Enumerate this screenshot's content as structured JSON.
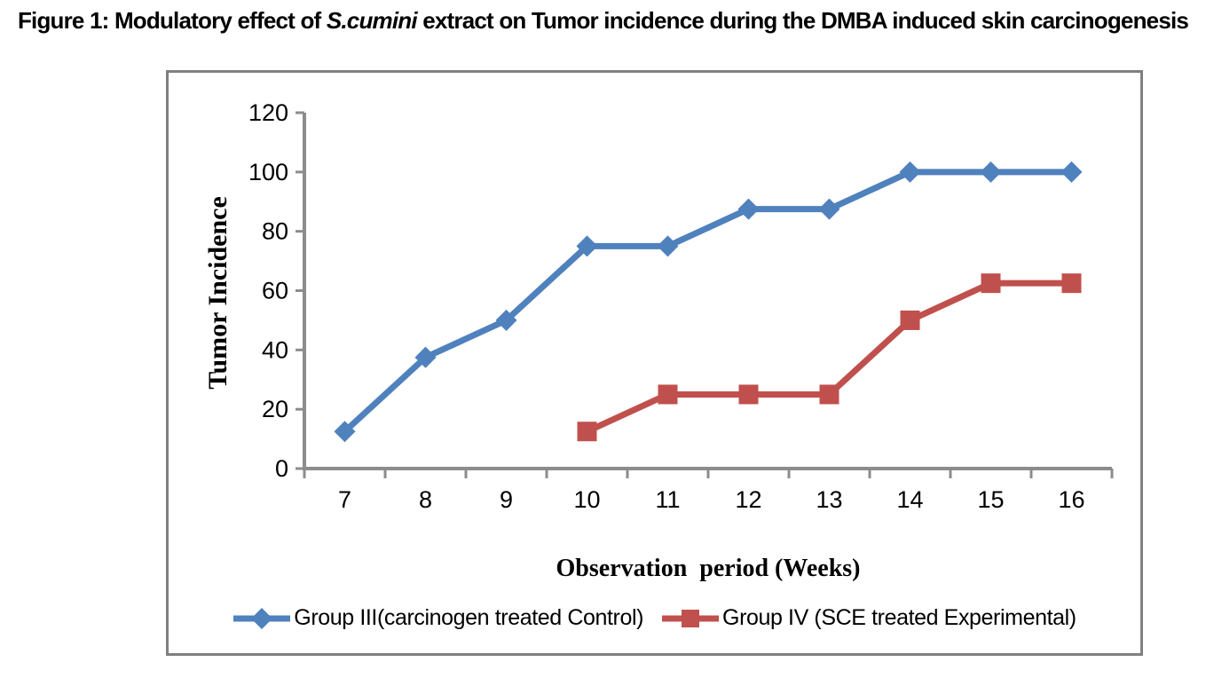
{
  "caption": {
    "prefix": "Figure 1: Modulatory effect of ",
    "species": "S.cumini",
    "suffix": " extract on Tumor incidence during the DMBA induced skin carcinogenesis"
  },
  "chart_data": {
    "type": "line",
    "title": "",
    "xlabel": "Observation  period (Weeks)",
    "ylabel": "Tumor Incidence",
    "categories": [
      "7",
      "8",
      "9",
      "10",
      "11",
      "12",
      "13",
      "14",
      "15",
      "16"
    ],
    "yticks": [
      0,
      20,
      40,
      60,
      80,
      100,
      120
    ],
    "ylim": [
      0,
      120
    ],
    "grid": false,
    "legend_position": "bottom",
    "axis_color": "#8C8C8C",
    "tick_label_color": "#000000",
    "series": [
      {
        "name": "Group III(carcinogen treated Control)",
        "marker": "diamond",
        "color": "#4F81BD",
        "values": [
          12.5,
          37.5,
          50,
          75,
          75,
          87.5,
          87.5,
          100,
          100,
          100
        ]
      },
      {
        "name": "Group IV (SCE treated Experimental)",
        "marker": "square",
        "color": "#C0504D",
        "values": [
          null,
          null,
          null,
          12.5,
          25,
          25,
          25,
          50,
          62.5,
          62.5
        ]
      }
    ]
  }
}
